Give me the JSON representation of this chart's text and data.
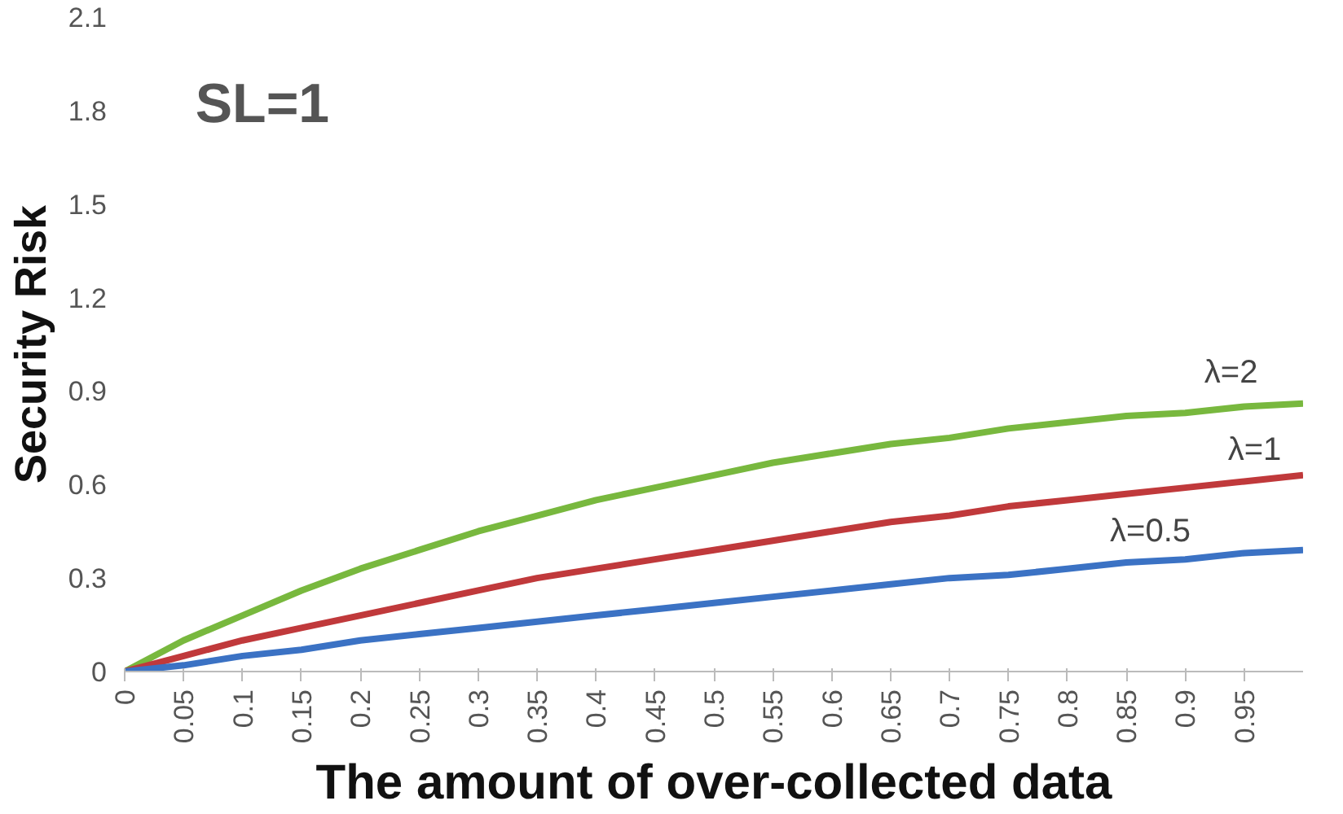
{
  "chart_data": {
    "type": "line",
    "xlabel": "The amount of over-collected data",
    "ylabel": "Security Risk",
    "x": [
      0,
      0.05,
      0.1,
      0.15,
      0.2,
      0.25,
      0.3,
      0.35,
      0.4,
      0.45,
      0.5,
      0.55,
      0.6,
      0.65,
      0.7,
      0.75,
      0.8,
      0.85,
      0.9,
      0.95,
      1.0
    ],
    "series": [
      {
        "color": "#78b83e",
        "values": [
          0,
          0.1,
          0.18,
          0.26,
          0.33,
          0.39,
          0.45,
          0.5,
          0.55,
          0.59,
          0.63,
          0.67,
          0.7,
          0.73,
          0.75,
          0.78,
          0.8,
          0.82,
          0.83,
          0.85,
          0.86
        ]
      },
      {
        "color": "#c0393b",
        "values": [
          0,
          0.05,
          0.1,
          0.14,
          0.18,
          0.22,
          0.26,
          0.3,
          0.33,
          0.36,
          0.39,
          0.42,
          0.45,
          0.48,
          0.5,
          0.53,
          0.55,
          0.57,
          0.59,
          0.61,
          0.63
        ]
      },
      {
        "color": "#3b72c4",
        "values": [
          0,
          0.02,
          0.05,
          0.07,
          0.1,
          0.12,
          0.14,
          0.16,
          0.18,
          0.2,
          0.22,
          0.24,
          0.26,
          0.28,
          0.3,
          0.31,
          0.33,
          0.35,
          0.36,
          0.38,
          0.39
        ]
      }
    ],
    "xlim": [
      0,
      1.0
    ],
    "xticks": [
      0,
      0.05,
      0.1,
      0.15,
      0.2,
      0.25,
      0.3,
      0.35,
      0.4,
      0.45,
      0.5,
      0.55,
      0.6,
      0.65,
      0.7,
      0.75,
      0.8,
      0.85,
      0.9,
      0.95
    ],
    "ylim": [
      0,
      2.1
    ],
    "yticks": [
      0,
      0.3,
      0.6,
      0.9,
      1.2,
      1.5,
      1.8,
      2.1
    ],
    "annotations": [
      "SL=1",
      {
        "text": "λ=2",
        "x": 0.93,
        "y": 0.86
      },
      {
        "text": "λ=1",
        "x": 0.95,
        "y": 0.61
      },
      {
        "text": "λ=0.5",
        "x": 0.85,
        "y": 0.35
      }
    ],
    "grid": false,
    "marker": "none",
    "line_style": "solid"
  }
}
